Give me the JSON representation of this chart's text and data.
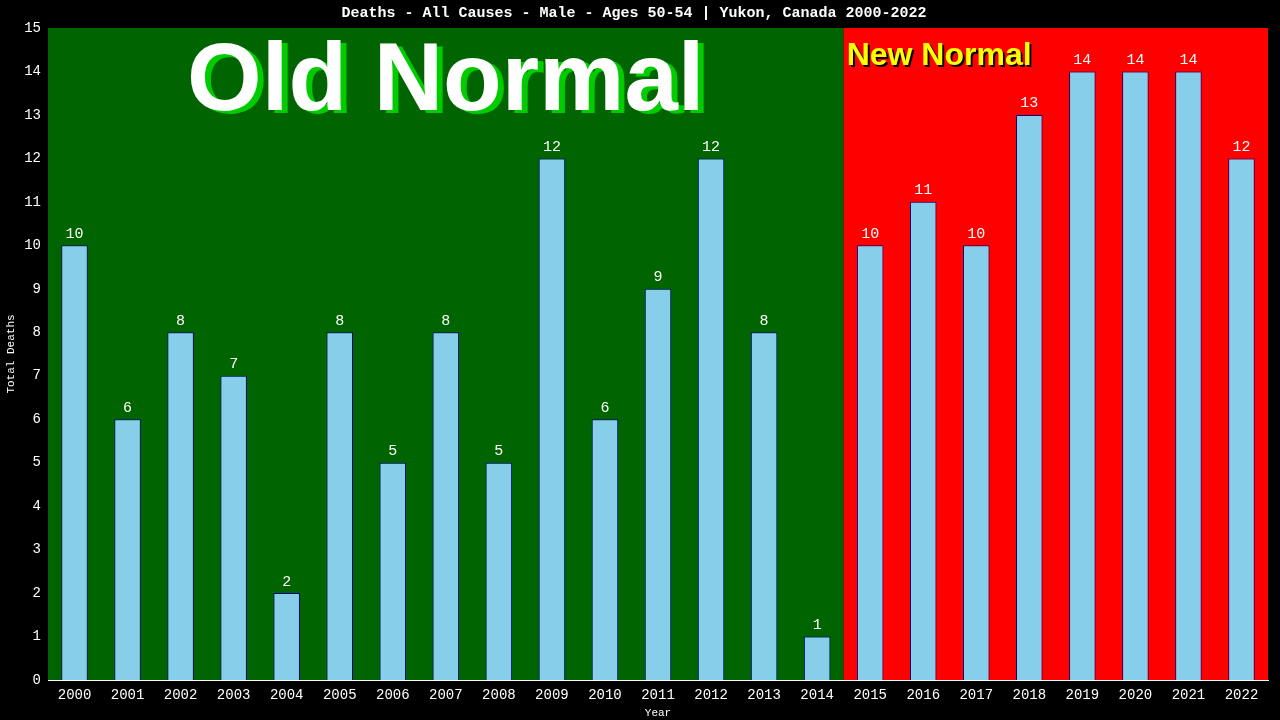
{
  "chart_data": {
    "type": "bar",
    "title": "Deaths - All Causes - Male - Ages 50-54 | Yukon, Canada 2000-2022",
    "xlabel": "Year",
    "ylabel": "Total Deaths",
    "categories": [
      "2000",
      "2001",
      "2002",
      "2003",
      "2004",
      "2005",
      "2006",
      "2007",
      "2008",
      "2009",
      "2010",
      "2011",
      "2012",
      "2013",
      "2014",
      "2015",
      "2016",
      "2017",
      "2018",
      "2019",
      "2020",
      "2021",
      "2022"
    ],
    "values": [
      10,
      6,
      8,
      7,
      2,
      8,
      5,
      8,
      5,
      12,
      6,
      9,
      12,
      8,
      1,
      10,
      11,
      10,
      13,
      14,
      14,
      14,
      12
    ],
    "color": "#87ceeb",
    "ylim": [
      0,
      15
    ],
    "yticks": [
      0,
      1,
      2,
      3,
      4,
      5,
      6,
      7,
      8,
      9,
      10,
      11,
      12,
      13,
      14,
      15
    ],
    "bands": [
      {
        "axis": "x",
        "from": "2000",
        "to": "2014",
        "label": "Old Normal",
        "color": "#006400"
      },
      {
        "axis": "x",
        "from": "2015",
        "to": "2022",
        "label": "New Normal",
        "color": "#ff0000"
      }
    ],
    "data_labels": true,
    "grid": false,
    "legend": false
  }
}
